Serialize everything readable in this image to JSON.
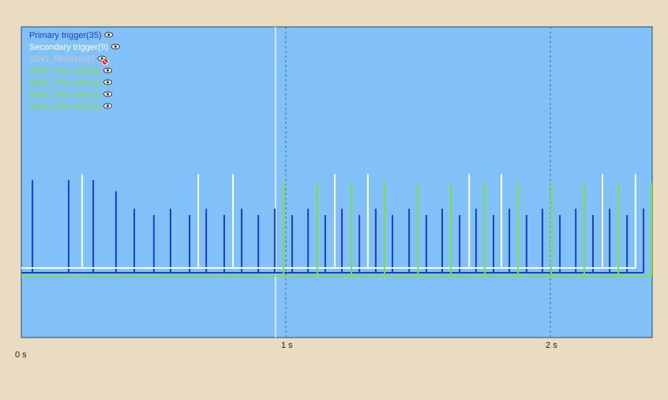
{
  "chart_data": {
    "type": "pulse",
    "xlim": [
      0,
      2.385
    ],
    "xticks": [
      {
        "value": 0,
        "label": "0 s"
      },
      {
        "value": 1,
        "label": "1 s"
      },
      {
        "value": 2,
        "label": "2 s"
      }
    ],
    "grid": true,
    "series": [
      {
        "name": "Primary trigger(35)",
        "color": "#1a3fc8",
        "x": [
          0.042,
          0.179,
          0.272,
          0.358,
          0.427,
          0.501,
          0.564,
          0.636,
          0.699,
          0.767,
          0.833,
          0.896,
          0.958,
          1.024,
          1.084,
          1.149,
          1.212,
          1.278,
          1.34,
          1.403,
          1.466,
          1.531,
          1.591,
          1.657,
          1.719,
          1.785,
          1.845,
          1.91,
          1.97,
          2.036,
          2.096,
          2.161,
          2.224,
          2.29,
          2.352
        ]
      },
      {
        "name": "Secondary trigger(9)",
        "color": "#ffffff",
        "x": [
          0.23,
          0.669,
          0.8,
          1.185,
          1.31,
          1.693,
          1.815,
          2.197,
          2.322
        ]
      },
      {
        "name": "IGN1_RISING(0)",
        "color": "#c8c8c8",
        "hidden": true,
        "x": []
      },
      {
        "name": "IGN0_FALLING(3)",
        "color": "#7ee03a",
        "x": [
          0.991,
          1.499,
          2.003
        ]
      },
      {
        "name": "IGN1_FALLING(3)",
        "color": "#7ee03a",
        "x": [
          1.119,
          1.624,
          2.128
        ]
      },
      {
        "name": "IGN2_FALLING(3)",
        "color": "#7ee03a",
        "x": [
          1.248,
          1.752,
          2.257
        ]
      },
      {
        "name": "IGN3_FALLING(3)",
        "color": "#7ee03a",
        "x": [
          1.373,
          1.878,
          2.382
        ]
      }
    ]
  }
}
